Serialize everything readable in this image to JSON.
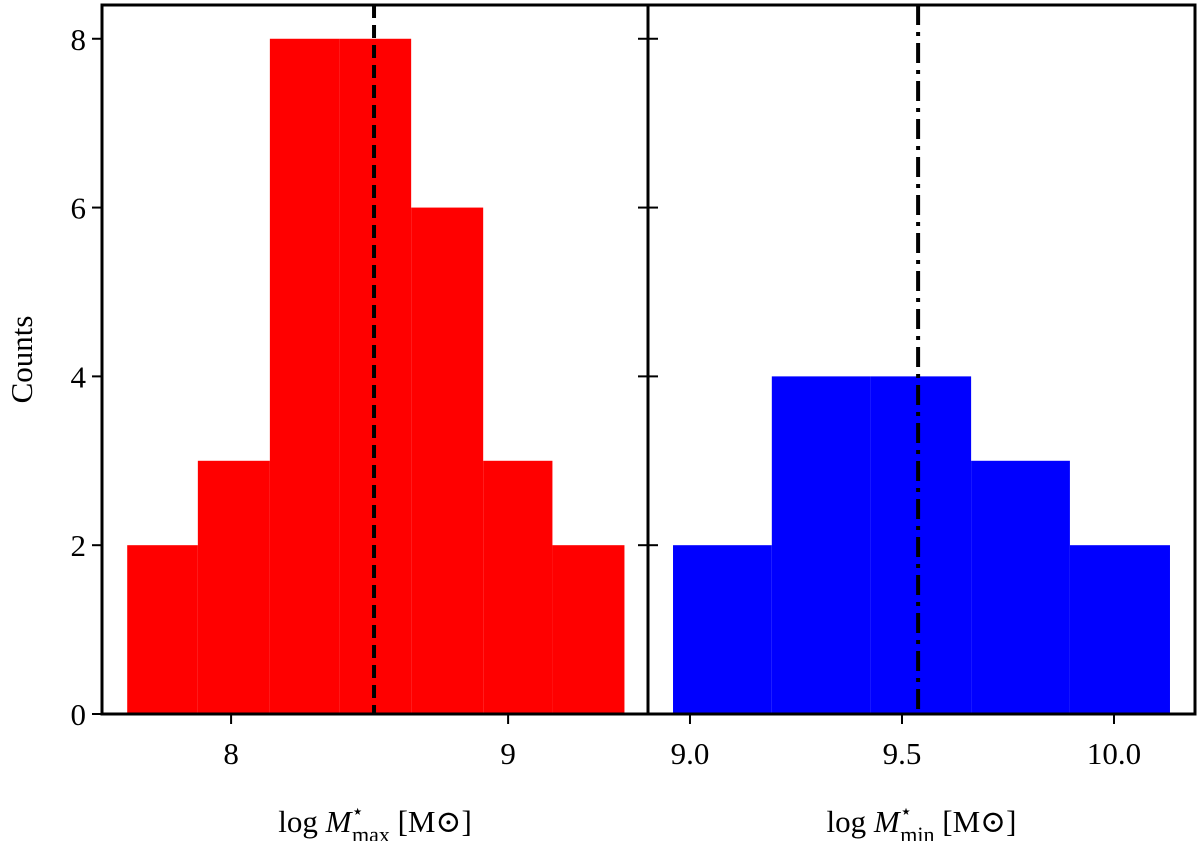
{
  "chart_data": [
    {
      "type": "histogram",
      "bins": [
        7.625,
        7.88,
        8.14,
        8.39,
        8.65,
        8.91,
        9.16,
        9.42
      ],
      "values": [
        2,
        3,
        8,
        8,
        6,
        3,
        2
      ],
      "color": "#ff0000",
      "xlim": [
        7.534,
        9.505
      ],
      "xticks": [
        8,
        9
      ],
      "ylim": [
        0,
        8.4
      ],
      "yticks": [
        0,
        2,
        4,
        6,
        8
      ],
      "ylabel": "Counts",
      "xlabel": {
        "pre": "log ",
        "var": "M",
        "sup": "⋆",
        "sub": "max",
        "unit": " [M⊙]"
      },
      "vline": {
        "value": 8.516,
        "style": "dashed"
      }
    },
    {
      "type": "histogram",
      "bins": [
        8.96,
        9.193,
        9.426,
        9.663,
        9.896,
        10.132
      ],
      "values": [
        2,
        4,
        4,
        3,
        2
      ],
      "color": "#0000ff",
      "xlim": [
        8.901,
        10.191
      ],
      "xticks": [
        {
          "value": 9,
          "label": "9.0"
        },
        9.5,
        {
          "value": 10,
          "label": "10.0"
        }
      ],
      "ylim": [
        0,
        8.4
      ],
      "yticks": [
        0,
        2,
        4,
        6,
        8
      ],
      "xlabel": {
        "pre": "log ",
        "var": "M",
        "sup": "⋆",
        "sub": "min",
        "unit": " [M⊙]"
      },
      "vline": {
        "value": 9.538,
        "style": "dashdot"
      }
    }
  ]
}
